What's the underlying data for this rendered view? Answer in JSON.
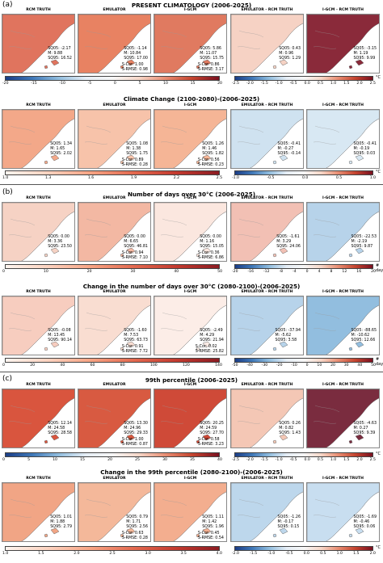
{
  "sections": [
    {
      "tag": "(a)"
    },
    {
      "tag": "(b)"
    },
    {
      "tag": "(c)"
    }
  ],
  "column_titles": [
    "RCM TRUTH",
    "EMULATOR",
    "I-GCM",
    "EMULATOR - RCM TRUTH",
    "I-GCM - RCM TRUTH"
  ],
  "rows": [
    {
      "title": "PRESENT CLIMATOLOGY (2006-2025)",
      "panels": [
        {
          "stats": "SQ05: -2.17\nM: 9.88\nSQ95: 16.52",
          "metrics": ""
        },
        {
          "stats": "SQ05: -1.14\nM: 10.84\nSQ95: 17.00",
          "metrics": "S-Cor: 1.00\nS-RMSE: 0.98"
        },
        {
          "stats": "SQ05: 5.86\nM: 11.07\nSQ95: 15.75",
          "metrics": "S-Cor: 0.86\nS-RMSE: 3.17"
        },
        {
          "stats": "SQ05: 0.43\nM: 0.96\nSQ95: 1.29",
          "metrics": ""
        },
        {
          "stats": "SQ05: -3.15\nM: 1.19\nSQ95: 9.99",
          "metrics": ""
        }
      ],
      "cbar_left": {
        "ticks": [
          "-20",
          "-15",
          "-10",
          "-5",
          "0",
          "5",
          "10",
          "15",
          "20"
        ]
      },
      "cbar_right": {
        "ticks": [
          "-2.5",
          "-2.0",
          "-1.5",
          "-1.0",
          "-0.5",
          "0.0",
          "0.5",
          "1.0",
          "1.5",
          "2.0",
          "2.5"
        ],
        "unit": "°C"
      }
    },
    {
      "title": "Climate Change (2100-2080)-(2006-2025)",
      "panels": [
        {
          "stats": "SQ05: 1.34\nM: 1.65\nSQ95: 2.02",
          "metrics": ""
        },
        {
          "stats": "SQ05: 1.08\nM: 1.38\nSQ95: 1.75",
          "metrics": "S-Cor: 0.89\nS-RMSE: 0.28"
        },
        {
          "stats": "SQ05: 1.26\nM: 1.46\nSQ95: 1.82",
          "metrics": "S-Cor: 0.56\nS-RMSE: 0.23"
        },
        {
          "stats": "SQ05: -0.41\nM: -0.27\nSQ95: -0.14",
          "metrics": ""
        },
        {
          "stats": "SQ05: -0.41\nM: -0.19\nSQ95: 0.03",
          "metrics": ""
        }
      ],
      "cbar_left": {
        "ticks": [
          "1.0",
          "1.3",
          "1.6",
          "1.9",
          "2.2",
          "2.5"
        ]
      },
      "cbar_right": {
        "ticks": [
          "-1.0",
          "-0.5",
          "0.0",
          "0.5",
          "1.0"
        ],
        "unit": "°C"
      }
    },
    {
      "title": "Number of days over 30°C (2006-2025)",
      "panels": [
        {
          "stats": "SQ05: 0.00\nM: 3.36\nSQ95: 23.50",
          "metrics": ""
        },
        {
          "stats": "SQ05: 0.00\nM: 6.65\nSQ95: 46.81",
          "metrics": "S-Cor: 0.94\nS-RMSE: 7.10"
        },
        {
          "stats": "SQ05: 0.00\nM: 1.16\nSQ95: 15.05",
          "metrics": "S-Cor: 0.36\nS-RMSE: 6.86"
        },
        {
          "stats": "SQ05: -1.61\nM: 3.29\nSQ95: 24.06",
          "metrics": ""
        },
        {
          "stats": "SQ05: -22.53\nM: -2.19\nSQ95: 9.87",
          "metrics": ""
        }
      ],
      "cbar_left": {
        "ticks": [
          "0",
          "10",
          "20",
          "30",
          "40",
          "50"
        ]
      },
      "cbar_right": {
        "ticks": [
          "-20",
          "-16",
          "-12",
          "-8",
          "-4",
          "0",
          "4",
          "8",
          "12",
          "16",
          "20"
        ],
        "unit": "# days"
      }
    },
    {
      "title": "Change in the number of days over 30°C (2080-2100)-(2006-2025)",
      "panels": [
        {
          "stats": "SQ05: -0.08\nM: 13.45\nSQ95: 90.14",
          "metrics": ""
        },
        {
          "stats": "SQ05: -1.60\nM: 7.53\nSQ95: 63.73",
          "metrics": "S-Cor: 0.91\nS-RMSE: 7.72"
        },
        {
          "stats": "SQ05: -2.49\nM: 4.29\nSQ95: 21.94",
          "metrics": "S-Cor: 0.02\nS-RMSE: 25.82"
        },
        {
          "stats": "SQ05: -37.94\nM: -5.62\nSQ95: 3.58",
          "metrics": ""
        },
        {
          "stats": "SQ05: -88.65\nM: -10.62\nSQ95: 12.66",
          "metrics": ""
        }
      ],
      "cbar_left": {
        "ticks": [
          "0",
          "20",
          "40",
          "60",
          "80",
          "100",
          "120",
          "140"
        ]
      },
      "cbar_right": {
        "ticks": [
          "-50",
          "-40",
          "-30",
          "-20",
          "-10",
          "0",
          "10",
          "20",
          "30",
          "40",
          "50"
        ],
        "unit": "# days"
      }
    },
    {
      "title": "99th percentile (2006-2025)",
      "panels": [
        {
          "stats": "SQ05: 12.14\nM: 24.58\nSQ95: 28.58",
          "metrics": ""
        },
        {
          "stats": "SQ05: 13.30\nM: 24.96\nSQ95: 29.33",
          "metrics": "S-Cor: 1.00\nS-RMSE: 0.87"
        },
        {
          "stats": "SQ05: 20.25\nM: 24.59\nSQ95: 27.70",
          "metrics": "S-Cor: 0.58\nS-RMSE: 3.23"
        },
        {
          "stats": "SQ05: 0.26\nM: 0.82\nSQ95: 1.43",
          "metrics": ""
        },
        {
          "stats": "SQ05: -4.63\nM: 0.27\nSQ95: 9.39",
          "metrics": ""
        }
      ],
      "cbar_left": {
        "ticks": [
          "0",
          "5",
          "10",
          "15",
          "20",
          "25",
          "30",
          "35",
          "40"
        ]
      },
      "cbar_right": {
        "ticks": [
          "-2.5",
          "-2.0",
          "-1.5",
          "-1.0",
          "-0.5",
          "0.0",
          "0.5",
          "1.0",
          "1.5",
          "2.0",
          "2.5"
        ],
        "unit": "°C"
      }
    },
    {
      "title": "Change in the 99th percentile (2080-2100)-(2006-2025)",
      "panels": [
        {
          "stats": "SQ05: 1.01\nM: 1.88\nSQ95: 2.79",
          "metrics": ""
        },
        {
          "stats": "SQ05: 0.79\nM: 1.71\nSQ95: 2.56",
          "metrics": "S-Cor: 0.63\nS-RMSE: 0.28"
        },
        {
          "stats": "SQ05: 1.11\nM: 1.42\nSQ95: 1.96",
          "metrics": "S-Cor: 0.45\nS-RMSE: 0.54"
        },
        {
          "stats": "SQ05: -1.26\nM: -0.17\nSQ95: 0.15",
          "metrics": ""
        },
        {
          "stats": "SQ05: -1.69\nM: -0.46\nSQ95: 0.06",
          "metrics": ""
        }
      ],
      "cbar_left": {
        "ticks": [
          "1.0",
          "1.5",
          "2.0",
          "2.5",
          "3.0",
          "3.5",
          "4.0"
        ]
      },
      "cbar_right": {
        "ticks": [
          "-2.0",
          "-1.5",
          "-1.0",
          "-0.5",
          "0.0",
          "0.5",
          "1.0",
          "1.5",
          "2.0"
        ],
        "unit": "°C"
      }
    }
  ],
  "panel_colors": [
    [
      "#e0745e",
      "#e88262",
      "#e07a60",
      "#f6d2c4",
      "#8a2a3a"
    ],
    [
      "#f3a889",
      "#f7c3aa",
      "#f5b596",
      "#cfe2f0",
      "#d8e8f3"
    ],
    [
      "#f6d2c4",
      "#f3b8a3",
      "#fbe7df",
      "#f2c0b4",
      "#b7d3ea"
    ],
    [
      "#f7cdbf",
      "#f9ddd1",
      "#fcede7",
      "#b7d3ea",
      "#92bedf"
    ],
    [
      "#d9553e",
      "#d85a41",
      "#cf4a38",
      "#f4c7b5",
      "#7a2c3f"
    ],
    [
      "#f1a585",
      "#f4b89a",
      "#f3ae8f",
      "#bdd7ec",
      "#c8def0"
    ]
  ],
  "colormaps": {
    "seq": [
      "#fff5ef",
      "#fcd2bf",
      "#f7a383",
      "#e3694f",
      "#c33a2f",
      "#8c1c22"
    ],
    "div": [
      "#1b3d86",
      "#3f78b8",
      "#92bedf",
      "#e6eef6",
      "#f7f7f7",
      "#f7d7c8",
      "#e88d72",
      "#c4442f",
      "#7a1020"
    ]
  }
}
